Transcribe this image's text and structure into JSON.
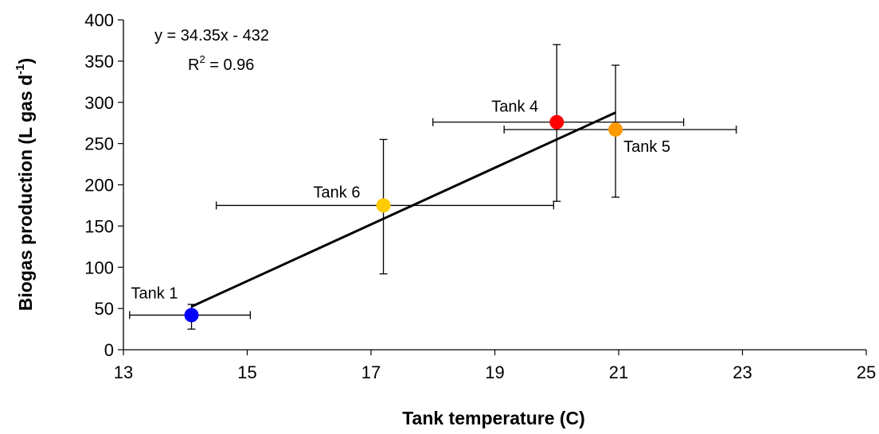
{
  "chart_data": {
    "type": "scatter",
    "xlabel": "Tank temperature (C)",
    "ylabel_main": "Biogas production (L gas d",
    "ylabel_sup": "-1",
    "ylabel_close": ")",
    "xlim": [
      13,
      25
    ],
    "ylim": [
      0,
      400
    ],
    "xticks": [
      13,
      15,
      17,
      19,
      21,
      23,
      25
    ],
    "yticks": [
      0,
      50,
      100,
      150,
      200,
      250,
      300,
      350,
      400
    ],
    "points": [
      {
        "label": "Tank 1",
        "x": 14.1,
        "y": 42,
        "xerr_low": 13.1,
        "xerr_high": 15.05,
        "yerr_low": 25,
        "yerr_high": 55,
        "color": "#0000ff"
      },
      {
        "label": "Tank 6",
        "x": 17.2,
        "y": 175,
        "xerr_low": 14.5,
        "xerr_high": 19.95,
        "yerr_low": 92,
        "yerr_high": 255,
        "color": "#ffcc00"
      },
      {
        "label": "Tank 4",
        "x": 20.0,
        "y": 276,
        "xerr_low": 18.0,
        "xerr_high": 22.05,
        "yerr_low": 180,
        "yerr_high": 370,
        "color": "#ff0000"
      },
      {
        "label": "Tank 5",
        "x": 20.95,
        "y": 267,
        "xerr_low": 19.15,
        "xerr_high": 22.9,
        "yerr_low": 185,
        "yerr_high": 345,
        "color": "#ff9900"
      }
    ],
    "trendline": {
      "slope": 34.35,
      "intercept": -432,
      "x_start": 14.1,
      "x_end": 20.95
    },
    "equation": "y = 34.35x - 432",
    "r2_prefix": "R",
    "r2_sup": "2",
    "r2_value": " = 0.96"
  }
}
